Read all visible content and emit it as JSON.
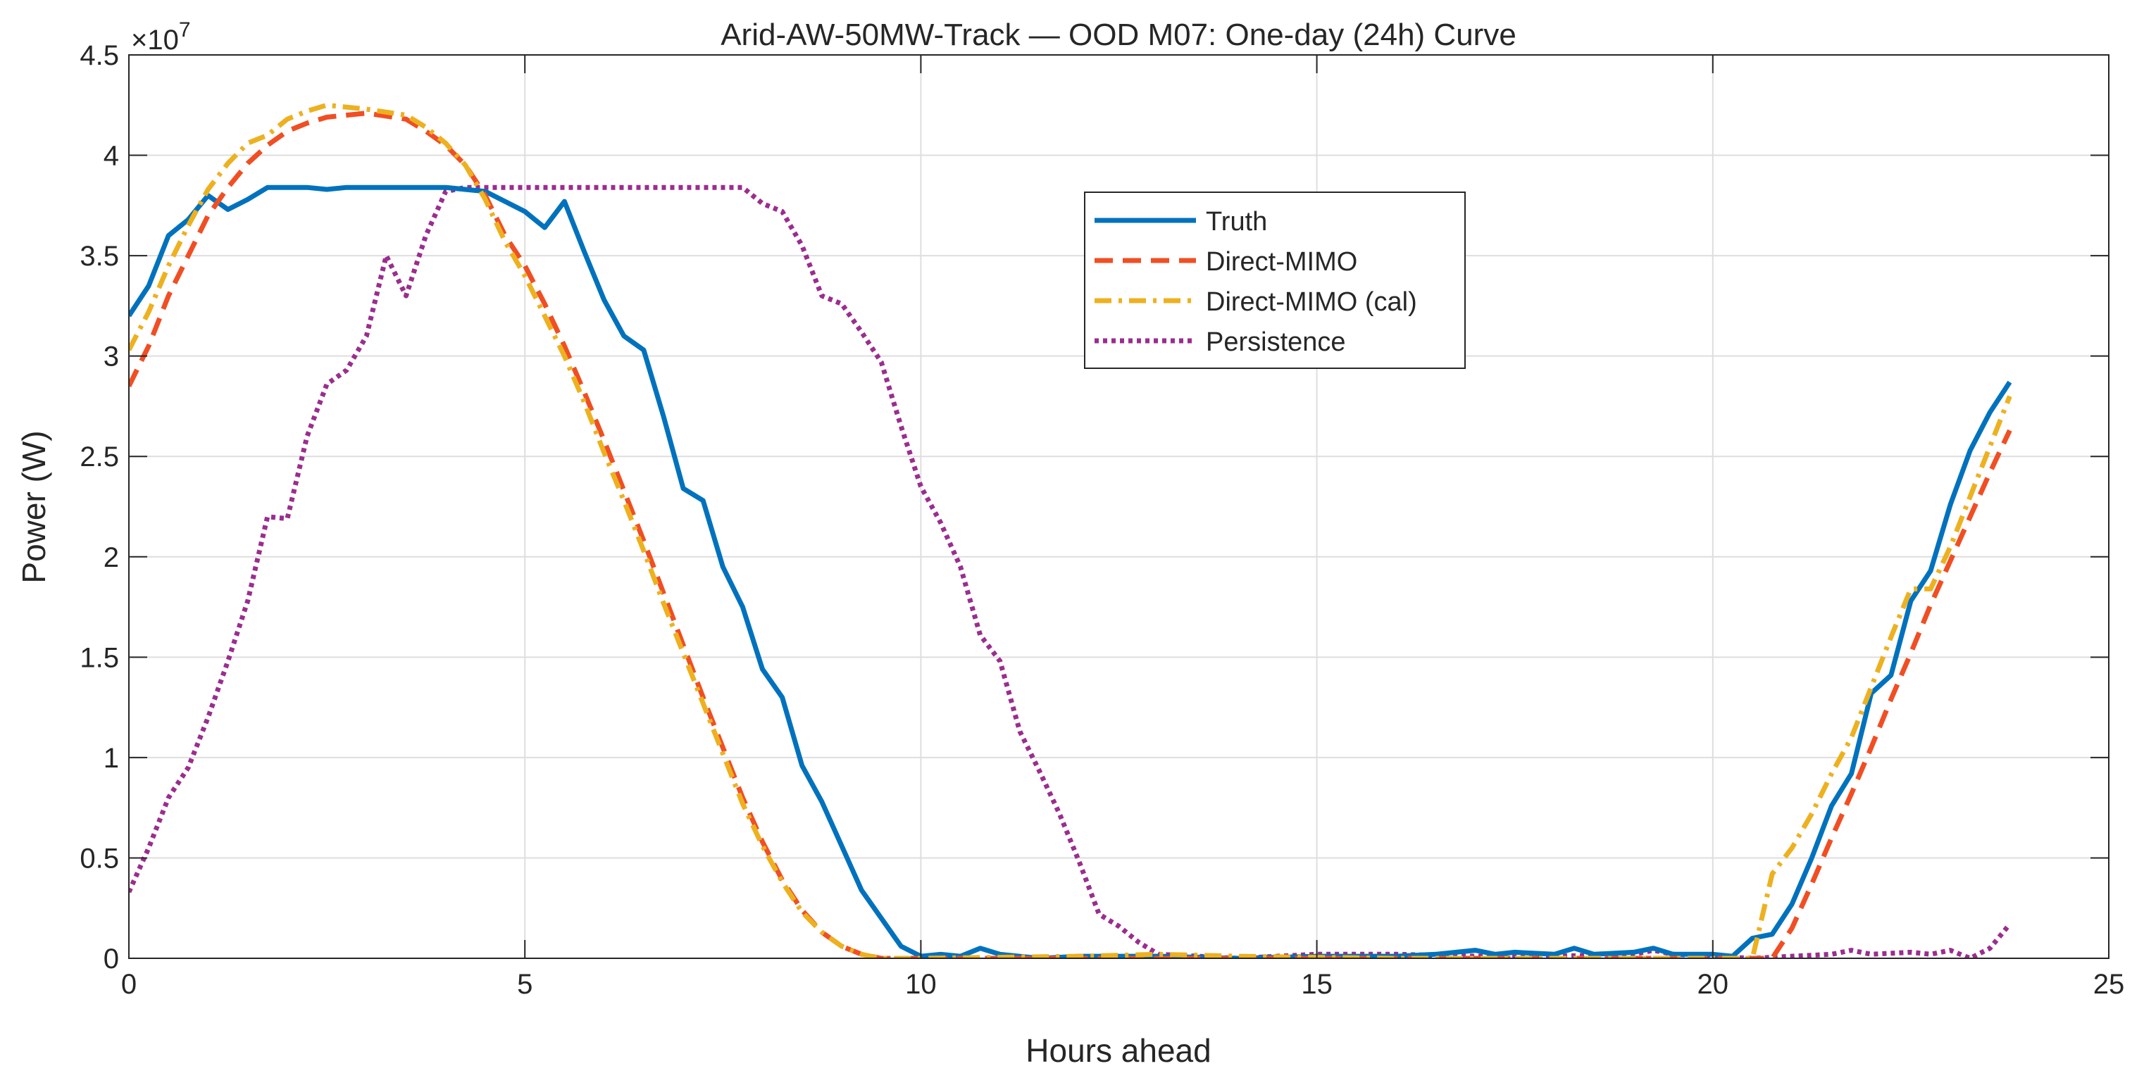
{
  "chart_data": {
    "type": "line",
    "title": "Arid-AW-50MW-Track — OOD M07: One-day (24h) Curve",
    "xlabel": "Hours ahead",
    "ylabel": "Power (W)",
    "y_exponent_label": "×10",
    "y_exponent": "7",
    "xlim": [
      0,
      25
    ],
    "ylim": [
      0,
      4.5
    ],
    "y_scale": 10000000,
    "x_ticks": [
      0,
      5,
      10,
      15,
      20,
      25
    ],
    "x_tick_labels": [
      "0",
      "5",
      "10",
      "15",
      "20",
      "25"
    ],
    "y_ticks": [
      0,
      0.5,
      1,
      1.5,
      2,
      2.5,
      3,
      3.5,
      4,
      4.5
    ],
    "y_tick_labels": [
      "0",
      "0.5",
      "1",
      "1.5",
      "2",
      "2.5",
      "3",
      "3.5",
      "4",
      "4.5"
    ],
    "grid": true,
    "legend_position": "upper-center",
    "series": [
      {
        "name": "Truth",
        "color": "#0072BD",
        "dash": "solid",
        "points": [
          [
            0,
            3.2
          ],
          [
            0.25,
            3.35
          ],
          [
            0.5,
            3.6
          ],
          [
            0.75,
            3.68
          ],
          [
            1,
            3.8
          ],
          [
            1.25,
            3.73
          ],
          [
            1.5,
            3.78
          ],
          [
            1.75,
            3.84
          ],
          [
            2,
            3.84
          ],
          [
            2.25,
            3.84
          ],
          [
            2.5,
            3.83
          ],
          [
            2.75,
            3.84
          ],
          [
            3,
            3.84
          ],
          [
            3.5,
            3.84
          ],
          [
            4,
            3.84
          ],
          [
            4.5,
            3.82
          ],
          [
            4.75,
            3.77
          ],
          [
            5,
            3.72
          ],
          [
            5.25,
            3.64
          ],
          [
            5.5,
            3.77
          ],
          [
            5.75,
            3.52
          ],
          [
            6,
            3.28
          ],
          [
            6.25,
            3.1
          ],
          [
            6.5,
            3.03
          ],
          [
            6.75,
            2.7
          ],
          [
            7,
            2.34
          ],
          [
            7.25,
            2.28
          ],
          [
            7.5,
            1.95
          ],
          [
            7.75,
            1.75
          ],
          [
            8,
            1.44
          ],
          [
            8.25,
            1.3
          ],
          [
            8.5,
            0.96
          ],
          [
            8.75,
            0.78
          ],
          [
            9,
            0.56
          ],
          [
            9.25,
            0.34
          ],
          [
            9.5,
            0.2
          ],
          [
            9.75,
            0.06
          ],
          [
            10,
            0.01
          ],
          [
            10.25,
            0.02
          ],
          [
            10.5,
            0.01
          ],
          [
            10.75,
            0.05
          ],
          [
            11,
            0.02
          ],
          [
            11.5,
            0.0
          ],
          [
            12,
            0.01
          ],
          [
            13,
            0.01
          ],
          [
            14,
            0.0
          ],
          [
            15,
            0.01
          ],
          [
            16,
            0.01
          ],
          [
            16.5,
            0.02
          ],
          [
            17,
            0.04
          ],
          [
            17.25,
            0.02
          ],
          [
            17.5,
            0.03
          ],
          [
            18,
            0.02
          ],
          [
            18.25,
            0.05
          ],
          [
            18.5,
            0.02
          ],
          [
            19,
            0.03
          ],
          [
            19.25,
            0.05
          ],
          [
            19.5,
            0.02
          ],
          [
            20,
            0.02
          ],
          [
            20.25,
            0.01
          ],
          [
            20.5,
            0.1
          ],
          [
            20.75,
            0.12
          ],
          [
            21,
            0.27
          ],
          [
            21.25,
            0.5
          ],
          [
            21.5,
            0.76
          ],
          [
            21.75,
            0.92
          ],
          [
            22,
            1.32
          ],
          [
            22.25,
            1.41
          ],
          [
            22.5,
            1.78
          ],
          [
            22.75,
            1.93
          ],
          [
            23,
            2.26
          ],
          [
            23.25,
            2.53
          ],
          [
            23.5,
            2.72
          ],
          [
            23.75,
            2.87
          ]
        ]
      },
      {
        "name": "Direct-MIMO",
        "color": "#F04E23",
        "dash": "dashed",
        "points": [
          [
            0,
            2.85
          ],
          [
            0.25,
            3.05
          ],
          [
            0.5,
            3.3
          ],
          [
            0.75,
            3.5
          ],
          [
            1,
            3.7
          ],
          [
            1.25,
            3.84
          ],
          [
            1.5,
            3.96
          ],
          [
            1.75,
            4.05
          ],
          [
            2,
            4.12
          ],
          [
            2.25,
            4.16
          ],
          [
            2.5,
            4.19
          ],
          [
            3,
            4.21
          ],
          [
            3.5,
            4.18
          ],
          [
            3.75,
            4.12
          ],
          [
            4,
            4.05
          ],
          [
            4.25,
            3.95
          ],
          [
            4.5,
            3.8
          ],
          [
            4.75,
            3.6
          ],
          [
            5,
            3.45
          ],
          [
            5.25,
            3.26
          ],
          [
            5.5,
            3.05
          ],
          [
            5.75,
            2.82
          ],
          [
            6,
            2.58
          ],
          [
            6.25,
            2.33
          ],
          [
            6.5,
            2.08
          ],
          [
            6.75,
            1.82
          ],
          [
            7,
            1.56
          ],
          [
            7.25,
            1.3
          ],
          [
            7.5,
            1.05
          ],
          [
            7.75,
            0.8
          ],
          [
            8,
            0.58
          ],
          [
            8.25,
            0.39
          ],
          [
            8.5,
            0.24
          ],
          [
            8.75,
            0.13
          ],
          [
            9,
            0.06
          ],
          [
            9.25,
            0.02
          ],
          [
            9.5,
            0.0
          ],
          [
            10,
            0.0
          ],
          [
            12,
            0.0
          ],
          [
            14,
            0.0
          ],
          [
            16,
            0.0
          ],
          [
            18,
            0.0
          ],
          [
            20,
            0.0
          ],
          [
            20.5,
            0.0
          ],
          [
            20.75,
            0.0
          ],
          [
            21,
            0.15
          ],
          [
            21.25,
            0.37
          ],
          [
            21.5,
            0.6
          ],
          [
            21.75,
            0.82
          ],
          [
            22,
            1.05
          ],
          [
            22.25,
            1.29
          ],
          [
            22.5,
            1.52
          ],
          [
            22.75,
            1.76
          ],
          [
            23,
            1.98
          ],
          [
            23.25,
            2.2
          ],
          [
            23.5,
            2.42
          ],
          [
            23.75,
            2.63
          ]
        ]
      },
      {
        "name": "Direct-MIMO (cal)",
        "color": "#EDB120",
        "dash": "dashdot",
        "points": [
          [
            0,
            3.03
          ],
          [
            0.25,
            3.22
          ],
          [
            0.5,
            3.45
          ],
          [
            0.75,
            3.65
          ],
          [
            1,
            3.83
          ],
          [
            1.25,
            3.96
          ],
          [
            1.5,
            4.06
          ],
          [
            1.75,
            4.1
          ],
          [
            2,
            4.18
          ],
          [
            2.25,
            4.22
          ],
          [
            2.5,
            4.25
          ],
          [
            3,
            4.23
          ],
          [
            3.5,
            4.2
          ],
          [
            3.75,
            4.14
          ],
          [
            4,
            4.06
          ],
          [
            4.25,
            3.95
          ],
          [
            4.5,
            3.78
          ],
          [
            4.75,
            3.57
          ],
          [
            5,
            3.4
          ],
          [
            5.25,
            3.2
          ],
          [
            5.5,
            3.0
          ],
          [
            5.75,
            2.77
          ],
          [
            6,
            2.52
          ],
          [
            6.25,
            2.28
          ],
          [
            6.5,
            2.03
          ],
          [
            6.75,
            1.77
          ],
          [
            7,
            1.52
          ],
          [
            7.25,
            1.27
          ],
          [
            7.5,
            1.02
          ],
          [
            7.75,
            0.77
          ],
          [
            8,
            0.56
          ],
          [
            8.25,
            0.38
          ],
          [
            8.5,
            0.23
          ],
          [
            8.75,
            0.13
          ],
          [
            9,
            0.06
          ],
          [
            9.25,
            0.02
          ],
          [
            9.5,
            0.0
          ],
          [
            10,
            0.0
          ],
          [
            12,
            0.01
          ],
          [
            13,
            0.02
          ],
          [
            14,
            0.01
          ],
          [
            16,
            0.0
          ],
          [
            18,
            0.0
          ],
          [
            20,
            0.0
          ],
          [
            20.5,
            0.0
          ],
          [
            20.75,
            0.42
          ],
          [
            21,
            0.55
          ],
          [
            21.25,
            0.72
          ],
          [
            21.5,
            0.92
          ],
          [
            21.75,
            1.1
          ],
          [
            22,
            1.35
          ],
          [
            22.25,
            1.6
          ],
          [
            22.5,
            1.84
          ],
          [
            22.75,
            1.84
          ],
          [
            23,
            2.05
          ],
          [
            23.25,
            2.3
          ],
          [
            23.5,
            2.55
          ],
          [
            23.75,
            2.8
          ]
        ]
      },
      {
        "name": "Persistence",
        "color": "#9B2D8E",
        "dash": "dotted",
        "points": [
          [
            0,
            0.33
          ],
          [
            0.25,
            0.55
          ],
          [
            0.5,
            0.8
          ],
          [
            0.75,
            0.95
          ],
          [
            1,
            1.2
          ],
          [
            1.25,
            1.48
          ],
          [
            1.5,
            1.78
          ],
          [
            1.75,
            2.2
          ],
          [
            2,
            2.19
          ],
          [
            2.25,
            2.6
          ],
          [
            2.5,
            2.86
          ],
          [
            2.75,
            2.93
          ],
          [
            3,
            3.1
          ],
          [
            3.25,
            3.5
          ],
          [
            3.5,
            3.3
          ],
          [
            3.75,
            3.6
          ],
          [
            4,
            3.82
          ],
          [
            4.25,
            3.84
          ],
          [
            5,
            3.84
          ],
          [
            6,
            3.84
          ],
          [
            7,
            3.84
          ],
          [
            7.75,
            3.84
          ],
          [
            8,
            3.76
          ],
          [
            8.25,
            3.72
          ],
          [
            8.5,
            3.55
          ],
          [
            8.75,
            3.3
          ],
          [
            9,
            3.26
          ],
          [
            9.25,
            3.12
          ],
          [
            9.5,
            2.97
          ],
          [
            9.75,
            2.65
          ],
          [
            10,
            2.35
          ],
          [
            10.25,
            2.17
          ],
          [
            10.5,
            1.95
          ],
          [
            10.75,
            1.61
          ],
          [
            11,
            1.48
          ],
          [
            11.25,
            1.13
          ],
          [
            11.5,
            0.93
          ],
          [
            11.75,
            0.72
          ],
          [
            12,
            0.48
          ],
          [
            12.25,
            0.22
          ],
          [
            12.5,
            0.16
          ],
          [
            12.75,
            0.08
          ],
          [
            13,
            0.02
          ],
          [
            13.5,
            0.01
          ],
          [
            14,
            0.0
          ],
          [
            14.5,
            0.01
          ],
          [
            15,
            0.02
          ],
          [
            16,
            0.02
          ],
          [
            17,
            0.01
          ],
          [
            18,
            0.01
          ],
          [
            19,
            0.02
          ],
          [
            19.25,
            0.04
          ],
          [
            19.5,
            0.02
          ],
          [
            20,
            0.01
          ],
          [
            20.5,
            0.0
          ],
          [
            21,
            0.01
          ],
          [
            21.5,
            0.02
          ],
          [
            21.75,
            0.04
          ],
          [
            22,
            0.02
          ],
          [
            22.5,
            0.03
          ],
          [
            22.75,
            0.02
          ],
          [
            23,
            0.04
          ],
          [
            23.25,
            0.0
          ],
          [
            23.5,
            0.05
          ],
          [
            23.75,
            0.17
          ]
        ]
      }
    ]
  }
}
